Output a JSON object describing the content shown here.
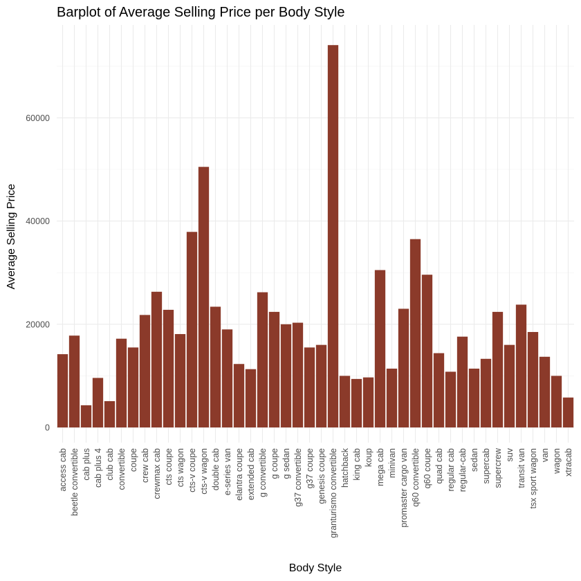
{
  "chart_data": {
    "type": "bar",
    "title": "Barplot of Average Selling Price per Body Style",
    "xlabel": "Body Style",
    "ylabel": "Average Selling Price",
    "ylim": [
      0,
      74000
    ],
    "yticks": [
      0,
      20000,
      40000,
      60000
    ],
    "ytick_labels": [
      "0",
      "20000",
      "40000",
      "60000"
    ],
    "grid": true,
    "legend": "none",
    "bar_color": "#8B3A2A",
    "categories": [
      "access cab",
      "beetle convertible",
      "cab plus",
      "cab plus 4",
      "club cab",
      "convertible",
      "coupe",
      "crew cab",
      "crewmax cab",
      "cts coupe",
      "cts wagon",
      "cts-v coupe",
      "cts-v wagon",
      "double cab",
      "e-series van",
      "elantra coupe",
      "extended cab",
      "g convertible",
      "g coupe",
      "g sedan",
      "g37 convertible",
      "g37 coupe",
      "genesis coupe",
      "granturismo convertible",
      "hatchback",
      "king cab",
      "koup",
      "mega cab",
      "minivan",
      "promaster cargo van",
      "q60 convertible",
      "q60 coupe",
      "quad cab",
      "regular cab",
      "regular-cab",
      "sedan",
      "supercab",
      "supercrew",
      "suv",
      "transit van",
      "tsx sport wagon",
      "van",
      "wagon",
      "xtracab"
    ],
    "values": [
      14200,
      17800,
      4300,
      9600,
      5100,
      17200,
      15500,
      21800,
      26300,
      22800,
      18100,
      37900,
      50500,
      23400,
      19000,
      12300,
      11300,
      26200,
      22400,
      20000,
      20300,
      15500,
      16000,
      74100,
      10000,
      9400,
      9700,
      30500,
      11400,
      23000,
      36500,
      29600,
      14400,
      10800,
      17600,
      11400,
      13300,
      22400,
      16000,
      23800,
      18500,
      13700,
      10000,
      5800
    ]
  }
}
